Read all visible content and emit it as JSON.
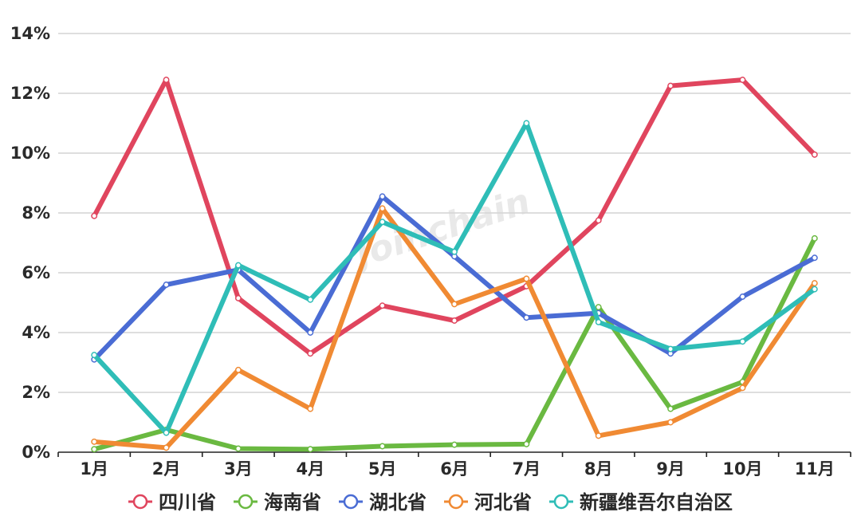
{
  "chart_data": {
    "type": "line",
    "categories": [
      "1月",
      "2月",
      "3月",
      "4月",
      "5月",
      "6月",
      "7月",
      "8月",
      "9月",
      "10月",
      "11月"
    ],
    "y_tick_labels": [
      "0%",
      "2%",
      "4%",
      "6%",
      "8%",
      "10%",
      "12%",
      "14%"
    ],
    "ylim": [
      0,
      14
    ],
    "grid": true,
    "legend_position": "bottom",
    "watermark": "Joinchain",
    "series": [
      {
        "name": "四川省",
        "color": "#e0455e",
        "values": [
          7.9,
          12.45,
          5.15,
          3.3,
          4.9,
          4.4,
          5.55,
          7.75,
          12.25,
          12.45,
          9.95
        ]
      },
      {
        "name": "海南省",
        "color": "#6ab941",
        "values": [
          0.1,
          0.75,
          0.12,
          0.1,
          0.2,
          0.25,
          0.27,
          4.85,
          1.45,
          2.35,
          7.15
        ]
      },
      {
        "name": "湖北省",
        "color": "#4a6cd4",
        "values": [
          3.1,
          5.6,
          6.1,
          4.0,
          8.55,
          6.55,
          4.5,
          4.65,
          3.3,
          5.2,
          6.5
        ]
      },
      {
        "name": "河北省",
        "color": "#f08a33",
        "values": [
          0.35,
          0.15,
          2.75,
          1.45,
          8.15,
          4.95,
          5.8,
          0.55,
          1.0,
          2.15,
          5.65
        ]
      },
      {
        "name": "新疆维吾尔自治区",
        "color": "#2fbdb7",
        "values": [
          3.25,
          0.65,
          6.25,
          5.1,
          7.7,
          6.7,
          11.0,
          4.35,
          3.45,
          3.7,
          5.45
        ]
      }
    ]
  }
}
